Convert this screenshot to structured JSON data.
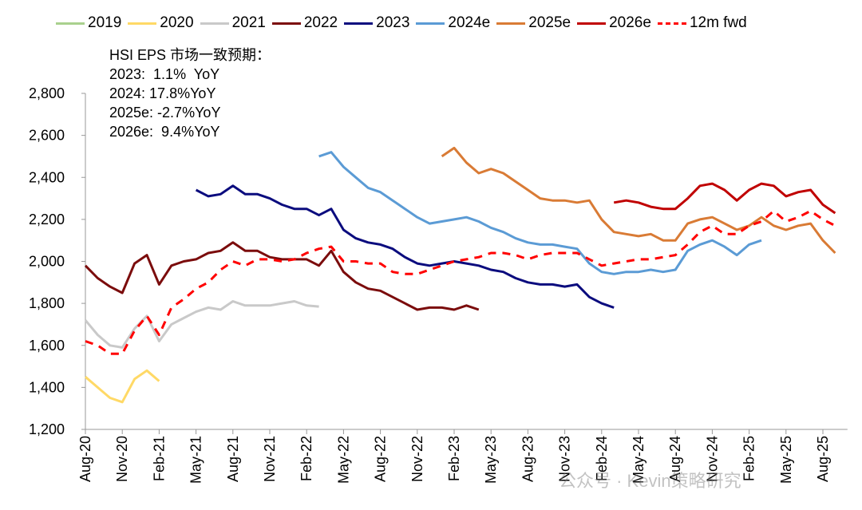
{
  "chart_data": {
    "type": "line",
    "title": "",
    "xlabel": "",
    "ylabel": "",
    "ylim": [
      1200,
      2800
    ],
    "yticks": [
      "1,200",
      "1,400",
      "1,600",
      "1,800",
      "2,000",
      "2,200",
      "2,400",
      "2,600",
      "2,800"
    ],
    "ytick_values": [
      1200,
      1400,
      1600,
      1800,
      2000,
      2200,
      2400,
      2600,
      2800
    ],
    "xlim": [
      "2020-08",
      "2025-10"
    ],
    "xticks": [
      "Aug-20",
      "Nov-20",
      "Feb-21",
      "May-21",
      "Aug-21",
      "Nov-21",
      "Feb-22",
      "May-22",
      "Aug-22",
      "Nov-22",
      "Feb-23",
      "May-23",
      "Aug-23",
      "Nov-23",
      "Feb-24",
      "May-24",
      "Aug-24",
      "Nov-24",
      "Feb-25",
      "May-25",
      "Aug-25"
    ],
    "grid": false,
    "legend_position": "top",
    "annotation": {
      "heading": "HSI EPS 市场一致预期：",
      "lines": [
        "2023:  1.1%  YoY",
        "2024: 17.8%YoY",
        "2025e: -2.7%YoY",
        "2026e:  9.4%YoY"
      ]
    },
    "x_frequency": "monthly",
    "series": [
      {
        "name": "2019",
        "color": "#A9D18E",
        "dashed": false,
        "x_start": "2020-08",
        "values": []
      },
      {
        "name": "2020",
        "color": "#FFD966",
        "dashed": false,
        "x_start": "2020-08",
        "values": [
          1450,
          1400,
          1350,
          1330,
          1440,
          1480,
          1430
        ]
      },
      {
        "name": "2021",
        "color": "#C9C9C9",
        "dashed": false,
        "x_start": "2020-08",
        "values": [
          1720,
          1650,
          1600,
          1590,
          1680,
          1740,
          1620,
          1700,
          1730,
          1760,
          1780,
          1770,
          1810,
          1790,
          1790,
          1790,
          1800,
          1810,
          1790,
          1785
        ]
      },
      {
        "name": "2022",
        "color": "#7B0C0C",
        "dashed": false,
        "x_start": "2020-08",
        "values": [
          1980,
          1920,
          1880,
          1850,
          1990,
          2030,
          1890,
          1980,
          2000,
          2010,
          2040,
          2050,
          2090,
          2050,
          2050,
          2020,
          2010,
          2010,
          2010,
          1980,
          2050,
          1950,
          1900,
          1870,
          1860,
          1830,
          1800,
          1770,
          1780,
          1780,
          1770,
          1790,
          1770
        ]
      },
      {
        "name": "2023",
        "color": "#0B0C7E",
        "dashed": false,
        "x_start": "2021-05",
        "values": [
          2340,
          2310,
          2320,
          2360,
          2320,
          2320,
          2300,
          2270,
          2250,
          2250,
          2220,
          2250,
          2150,
          2110,
          2090,
          2080,
          2060,
          2020,
          1990,
          1980,
          1990,
          2000,
          1990,
          1980,
          1960,
          1950,
          1920,
          1900,
          1890,
          1890,
          1880,
          1890,
          1830,
          1800,
          1780
        ]
      },
      {
        "name": "2024e",
        "color": "#5B9BD5",
        "dashed": false,
        "x_start": "2022-03",
        "values": [
          2500,
          2520,
          2450,
          2400,
          2350,
          2330,
          2290,
          2250,
          2210,
          2180,
          2190,
          2200,
          2210,
          2190,
          2160,
          2140,
          2110,
          2090,
          2080,
          2080,
          2070,
          2060,
          1990,
          1950,
          1940,
          1950,
          1950,
          1960,
          1950,
          1960,
          2050,
          2080,
          2100,
          2070,
          2030,
          2080,
          2100
        ]
      },
      {
        "name": "2025e",
        "color": "#D97B35",
        "dashed": false,
        "x_start": "2023-01",
        "values": [
          2500,
          2540,
          2470,
          2420,
          2440,
          2420,
          2380,
          2340,
          2300,
          2290,
          2290,
          2280,
          2290,
          2200,
          2140,
          2130,
          2120,
          2130,
          2100,
          2100,
          2180,
          2200,
          2210,
          2180,
          2150,
          2170,
          2210,
          2170,
          2150,
          2170,
          2180,
          2100,
          2040
        ]
      },
      {
        "name": "2026e",
        "color": "#C00000",
        "dashed": false,
        "x_start": "2024-03",
        "values": [
          2280,
          2290,
          2280,
          2260,
          2250,
          2250,
          2300,
          2360,
          2370,
          2340,
          2290,
          2340,
          2370,
          2360,
          2310,
          2330,
          2340,
          2270,
          2230
        ]
      },
      {
        "name": "12m fwd",
        "color": "#FF0000",
        "dashed": true,
        "x_start": "2020-08",
        "values": [
          1620,
          1600,
          1560,
          1560,
          1670,
          1740,
          1650,
          1780,
          1820,
          1870,
          1900,
          1960,
          2000,
          1980,
          2010,
          2010,
          2000,
          2010,
          2040,
          2060,
          2070,
          2000,
          2000,
          1990,
          1990,
          1950,
          1940,
          1940,
          1960,
          1980,
          2000,
          2010,
          2020,
          2040,
          2040,
          2030,
          2010,
          2030,
          2040,
          2040,
          2040,
          2010,
          1980,
          1990,
          2000,
          2010,
          2010,
          2020,
          2030,
          2080,
          2140,
          2170,
          2130,
          2130,
          2170,
          2190,
          2240,
          2190,
          2210,
          2240,
          2200,
          2170
        ]
      }
    ]
  },
  "watermark": "公众号 · Kevin策略研究"
}
